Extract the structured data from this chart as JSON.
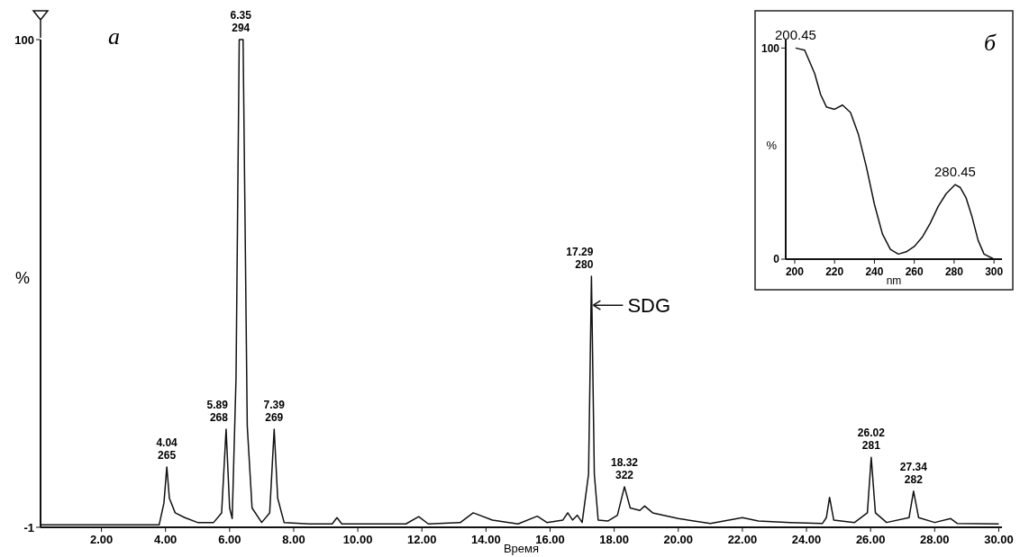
{
  "chart_data": [
    {
      "type": "line",
      "xlabel": "Время",
      "ylabel": "%",
      "annotations": [
        "а",
        {
          "text": "4.04\n265",
          "x": 4.04,
          "y": 11.5
        },
        {
          "text": "5.89\n268",
          "x": 5.89,
          "y": 19.3
        },
        {
          "text": "6.35\n294",
          "x": 6.35,
          "y": 100
        },
        {
          "text": "7.39\n269",
          "x": 7.39,
          "y": 19.3
        },
        {
          "text": "17.29\n280",
          "x": 17.29,
          "y": 51
        },
        {
          "text": "SDG",
          "x": 17.29,
          "y": 45
        },
        {
          "text": "18.32\n322",
          "x": 18.32,
          "y": 7.4
        },
        {
          "text": "26.02\n281",
          "x": 26.02,
          "y": 13.5
        },
        {
          "text": "27.34\n282",
          "x": 27.34,
          "y": 6.5
        }
      ],
      "xlim": [
        0.1,
        30.1
      ],
      "ylim": [
        -1,
        100
      ],
      "xticks": [
        {
          "value": 2,
          "label": "2.00"
        },
        {
          "value": 4,
          "label": "4.00"
        },
        {
          "value": 6,
          "label": "6.00"
        },
        {
          "value": 8,
          "label": "8.00"
        },
        {
          "value": 10,
          "label": "10.00"
        },
        {
          "value": 12,
          "label": "12.00"
        },
        {
          "value": 14,
          "label": "14.00"
        },
        {
          "value": 16,
          "label": "16.00"
        },
        {
          "value": 18,
          "label": "18.00"
        },
        {
          "value": 20,
          "label": "20.00"
        },
        {
          "value": 22,
          "label": "22.00"
        },
        {
          "value": 24,
          "label": "24.00"
        },
        {
          "value": 26,
          "label": "26.00"
        },
        {
          "value": 28,
          "label": "28.00"
        },
        {
          "value": 30,
          "label": "30.00"
        }
      ],
      "yticks": [
        -1,
        100
      ],
      "grid": false,
      "marker": "none",
      "line_style": "solid",
      "series": [
        {
          "color": "#111111",
          "x": [
            0.1,
            3.8,
            3.95,
            4.04,
            4.12,
            4.3,
            4.6,
            5.0,
            5.5,
            5.75,
            5.89,
            6.0,
            6.08,
            6.2,
            6.3,
            6.42,
            6.55,
            6.7,
            7.0,
            7.25,
            7.39,
            7.5,
            7.7,
            8.5,
            9.2,
            9.35,
            9.5,
            11.5,
            11.9,
            12.2,
            13.2,
            13.6,
            14.2,
            15.0,
            15.6,
            15.9,
            16.4,
            16.55,
            16.7,
            16.85,
            17.0,
            17.2,
            17.29,
            17.38,
            17.5,
            17.8,
            18.1,
            18.32,
            18.5,
            18.8,
            18.95,
            19.2,
            20,
            21,
            22,
            22.5,
            23.5,
            24.5,
            24.62,
            24.72,
            24.85,
            25.5,
            25.9,
            26.02,
            26.15,
            26.5,
            27.2,
            27.34,
            27.5,
            28,
            28.5,
            28.7,
            30
          ],
          "values": [
            -0.5,
            -0.5,
            4,
            11.5,
            5,
            2,
            1,
            0,
            0,
            2,
            19.3,
            3,
            0.8,
            30,
            100,
            100,
            20,
            3,
            0,
            2,
            19.3,
            5,
            0,
            -0.3,
            -0.3,
            1,
            -0.3,
            -0.3,
            1.2,
            -0.3,
            0,
            2,
            0.5,
            -0.3,
            1.3,
            0,
            0.5,
            2,
            0.5,
            1.5,
            0,
            10,
            51,
            10,
            0.5,
            0.3,
            1.5,
            7.4,
            3,
            2.5,
            3.4,
            2,
            0.8,
            -0.2,
            1,
            0.3,
            0,
            -0.2,
            1,
            5.2,
            0.5,
            0,
            2,
            13.5,
            2,
            0,
            1,
            6.5,
            1,
            0,
            0.8,
            -0.2,
            -0.3
          ]
        }
      ]
    },
    {
      "type": "line",
      "xlabel": "nm",
      "ylabel": "%",
      "annotations": [
        "б",
        {
          "text": "200.45",
          "x": 200.45,
          "y": 100
        },
        {
          "text": "280.45",
          "x": 280.45,
          "y": 35.3
        }
      ],
      "xlim": [
        195.5,
        304
      ],
      "ylim": [
        0,
        104
      ],
      "xticks": [
        200,
        220,
        240,
        260,
        280,
        300
      ],
      "yticks": [
        0,
        100
      ],
      "grid": false,
      "marker": "none",
      "line_style": "solid",
      "series": [
        {
          "color": "#111111",
          "x": [
            200.45,
            205,
            210,
            213,
            216,
            220,
            224,
            228,
            232,
            236,
            240,
            244,
            248,
            252,
            256,
            260,
            264,
            268,
            272,
            276,
            280.45,
            283,
            286,
            289,
            292,
            295,
            300,
            304
          ],
          "values": [
            100,
            99,
            88,
            78,
            72,
            71,
            73,
            69.5,
            59,
            43.5,
            26,
            12,
            4.6,
            2.4,
            3.5,
            6,
            10.4,
            17,
            25,
            31,
            35.3,
            34,
            29,
            20,
            9,
            2.4,
            0,
            0
          ]
        }
      ]
    }
  ]
}
